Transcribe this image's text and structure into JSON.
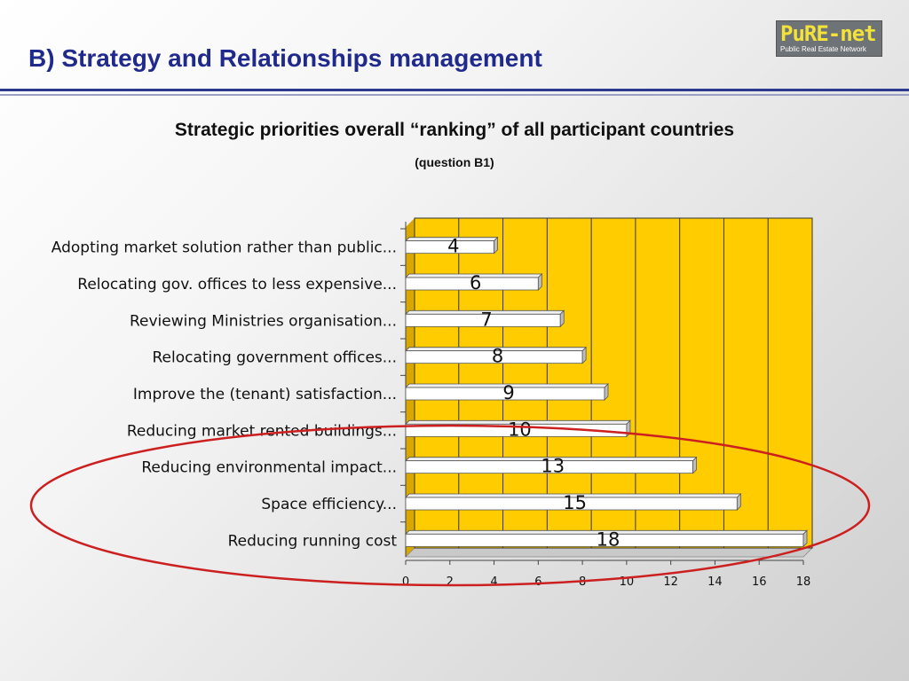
{
  "slide": {
    "title": "B) Strategy and Relationships management"
  },
  "logo": {
    "name": "PuRE-net",
    "subtitle": "Public Real Estate Network"
  },
  "chart_heading": "Strategic priorities overall “ranking” of all participant countries",
  "chart_subheading": "(question B1)",
  "colors": {
    "title": "#1f2a8c",
    "plot_background": "#ffcc00",
    "bar_fill": "#ffffff",
    "highlight_ellipse": "#cc1f1f",
    "rule": "#2b3a8f"
  },
  "chart_data": {
    "type": "bar",
    "orientation": "horizontal",
    "style": "3d",
    "categories": [
      "Adopting market solution rather than public...",
      "Relocating gov. offices to less expensive...",
      "Reviewing Ministries organisation...",
      "Relocating government offices...",
      "Improve the (tenant) satisfaction...",
      "Reducing market rented buildings...",
      "Reducing environmental impact...",
      "Space efficiency...",
      "Reducing running cost"
    ],
    "values": [
      4,
      6,
      7,
      8,
      9,
      10,
      13,
      15,
      18
    ],
    "data_labels": [
      "4",
      "6",
      "7",
      "8",
      "9",
      "10",
      "13",
      "15",
      "18"
    ],
    "xlim": [
      0,
      18
    ],
    "x_ticks": [
      0,
      2,
      4,
      6,
      8,
      10,
      12,
      14,
      16,
      18
    ],
    "grid": true,
    "legend": "none",
    "highlighted_categories": [
      "Reducing environmental impact...",
      "Space efficiency...",
      "Reducing running cost"
    ]
  }
}
